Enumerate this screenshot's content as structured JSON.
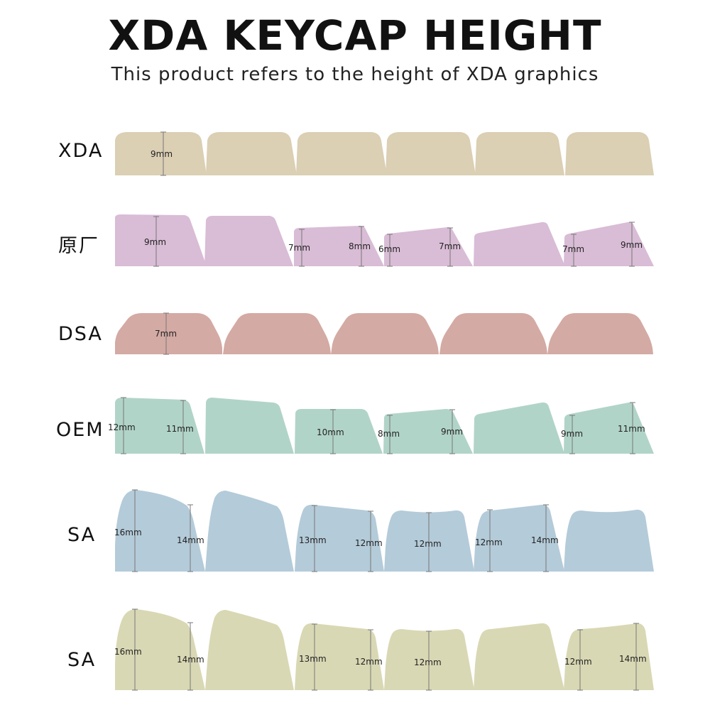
{
  "title": "XDA KEYCAP HEIGHT",
  "subtitle": "This product refers to the height of XDA graphics",
  "colors": {
    "xda": "#dbcfb4",
    "oem_factory": "#d9bcd6",
    "dsa": "#d4aaa4",
    "oem": "#b1d4c8",
    "sa_blue": "#b4cbd9",
    "sa_green": "#d9d8b4"
  },
  "rows": [
    {
      "id": "xda",
      "label": "XDA",
      "color_key": "xda",
      "measurements": [
        "9mm"
      ]
    },
    {
      "id": "oem-factory",
      "label": "原厂",
      "color_key": "oem_factory",
      "measurements": [
        "9mm",
        "7mm",
        "8mm",
        "6mm",
        "7mm",
        "7mm",
        "9mm"
      ]
    },
    {
      "id": "dsa",
      "label": "DSA",
      "color_key": "dsa",
      "measurements": [
        "7mm"
      ]
    },
    {
      "id": "oem",
      "label": "OEM",
      "color_key": "oem",
      "measurements": [
        "12mm",
        "11mm",
        "10mm",
        "8mm",
        "9mm",
        "9mm",
        "11mm"
      ]
    },
    {
      "id": "sa-1",
      "label": "SA",
      "color_key": "sa_blue",
      "measurements": [
        "16mm",
        "14mm",
        "13mm",
        "12mm",
        "12mm",
        "12mm",
        "14mm"
      ]
    },
    {
      "id": "sa-2",
      "label": "SA",
      "color_key": "sa_green",
      "measurements": [
        "16mm",
        "14mm",
        "13mm",
        "12mm",
        "12mm",
        "12mm",
        "14mm"
      ]
    }
  ]
}
